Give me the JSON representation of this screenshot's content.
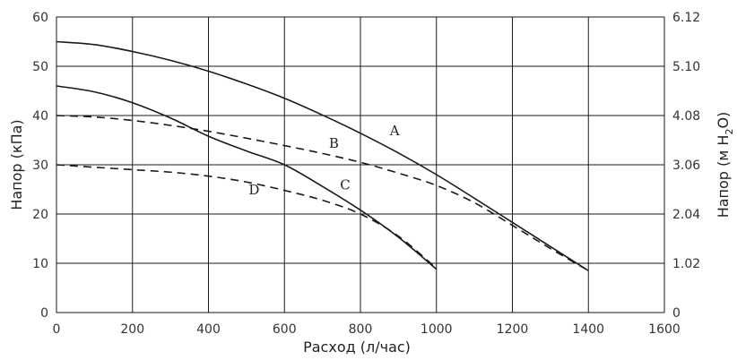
{
  "chart_data": {
    "type": "line",
    "xlabel": "Расход (л/час)",
    "ylabel": "Напор (кПа)",
    "y2label_main": "Напор (м H",
    "y2label_sub": "2",
    "y2label_end": "O)",
    "xlim": [
      0,
      1600
    ],
    "ylim": [
      0,
      60
    ],
    "grid": true,
    "x_ticks": [
      "0",
      "200",
      "400",
      "600",
      "800",
      "1000",
      "1200",
      "1400",
      "1600"
    ],
    "y_ticks": [
      "0",
      "10",
      "20",
      "30",
      "40",
      "50",
      "60"
    ],
    "y2_ticks": [
      "0",
      "1.02",
      "2.04",
      "3.06",
      "4.08",
      "5.10",
      "6.12"
    ],
    "series": [
      {
        "name": "A",
        "style": "solid",
        "x": [
          0,
          100,
          200,
          300,
          400,
          500,
          600,
          700,
          800,
          900,
          1000,
          1100,
          1200,
          1300,
          1400
        ],
        "y": [
          55,
          54.4,
          53,
          51.2,
          49,
          46.4,
          43.5,
          40.1,
          36.4,
          32.4,
          28,
          23.2,
          18.3,
          13.4,
          8.5
        ],
        "label_at": [
          890,
          36
        ]
      },
      {
        "name": "B",
        "style": "dashed",
        "x": [
          0,
          100,
          200,
          300,
          400,
          500,
          600,
          700,
          800,
          900,
          1000,
          1100,
          1200,
          1300,
          1400
        ],
        "y": [
          40,
          39.7,
          39,
          38,
          36.8,
          35.4,
          33.9,
          32.3,
          30.5,
          28.3,
          25.8,
          22.3,
          17.7,
          13,
          8.5
        ],
        "label_at": [
          730,
          33.5
        ]
      },
      {
        "name": "C",
        "style": "solid",
        "x": [
          0,
          100,
          200,
          300,
          400,
          500,
          600,
          700,
          800,
          900,
          1000
        ],
        "y": [
          46,
          44.8,
          42.6,
          39.5,
          35.8,
          32.8,
          30,
          25.6,
          20.8,
          15.3,
          8.8
        ],
        "label_at": [
          760,
          25
        ]
      },
      {
        "name": "D",
        "style": "dashed",
        "x": [
          0,
          100,
          200,
          300,
          400,
          500,
          600,
          700,
          800,
          900,
          1000
        ],
        "y": [
          30,
          29.5,
          29,
          28.5,
          27.7,
          26.5,
          24.8,
          22.8,
          20,
          15.5,
          9
        ],
        "label_at": [
          520,
          24
        ]
      }
    ]
  }
}
